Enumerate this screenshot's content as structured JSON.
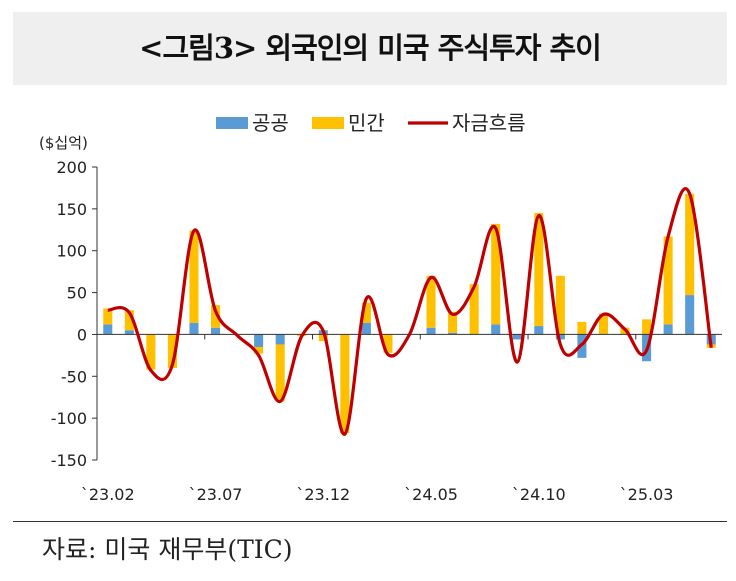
{
  "title": "<그림3> 외국인의 미국 주식투자 추이",
  "source": "자료: 미국 재무부(TIC)",
  "chart_data": {
    "type": "bar",
    "unit_label": "($십억)",
    "ylim": [
      -150,
      200
    ],
    "yticks": [
      200,
      150,
      100,
      50,
      0,
      -50,
      -100,
      -150
    ],
    "xtick_labels": [
      "`23.02",
      "`23.07",
      "`23.12",
      "`24.05",
      "`24.10",
      "`25.03"
    ],
    "xtick_indices": [
      0,
      5,
      10,
      15,
      20,
      25
    ],
    "stacked": true,
    "legend_position": "top",
    "series": [
      {
        "name": "공공",
        "kind": "bar",
        "color": "#5b9bd5",
        "values": [
          12,
          5,
          0,
          0,
          14,
          8,
          0,
          -15,
          -12,
          0,
          5,
          0,
          14,
          0,
          0,
          8,
          2,
          0,
          12,
          -6,
          10,
          -6,
          -28,
          0,
          0,
          -32,
          12,
          47,
          -12
        ]
      },
      {
        "name": "민간",
        "kind": "bar",
        "color": "#ffc000",
        "values": [
          19,
          24,
          -42,
          -40,
          110,
          27,
          0,
          -8,
          -68,
          -2,
          -8,
          -118,
          24,
          -22,
          0,
          62,
          25,
          60,
          120,
          0,
          135,
          70,
          15,
          25,
          8,
          18,
          105,
          121,
          -4
        ]
      },
      {
        "name": "자금흐름",
        "kind": "line",
        "color": "#c00000",
        "values": [
          29,
          26,
          -43,
          -36,
          124,
          28,
          -1,
          -25,
          -80,
          -2,
          4,
          -119,
          43,
          -24,
          0,
          68,
          24,
          57,
          127,
          -33,
          142,
          -12,
          -12,
          24,
          6,
          -19,
          117,
          168,
          -16
        ]
      }
    ]
  }
}
